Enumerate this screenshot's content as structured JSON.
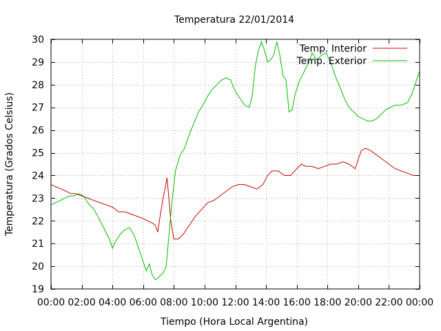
{
  "chart_data": {
    "type": "line",
    "title": "Temperatura 22/01/2014",
    "xlabel": "Tiempo (Hora Local Argentina)",
    "ylabel": "Temperatura (Grados Celsius)",
    "xlim": [
      0,
      24
    ],
    "ylim": [
      19,
      30
    ],
    "x_ticks": [
      0,
      2,
      4,
      6,
      8,
      10,
      12,
      14,
      16,
      18,
      20,
      22,
      24
    ],
    "x_tick_labels": [
      "00:00",
      "02:00",
      "04:00",
      "06:00",
      "08:00",
      "10:00",
      "12:00",
      "14:00",
      "16:00",
      "18:00",
      "20:00",
      "22:00",
      "00:00"
    ],
    "y_ticks": [
      19,
      20,
      21,
      22,
      23,
      24,
      25,
      26,
      27,
      28,
      29,
      30
    ],
    "y_tick_labels": [
      "19",
      "20",
      "21",
      "22",
      "23",
      "24",
      "25",
      "26",
      "27",
      "28",
      "29",
      "30"
    ],
    "grid": true,
    "legend_position": "top-right",
    "series": [
      {
        "name": "Temp. Interior",
        "color": "#cc0000",
        "points": [
          [
            0,
            23.6
          ],
          [
            0.3,
            23.5
          ],
          [
            0.7,
            23.4
          ],
          [
            1.0,
            23.3
          ],
          [
            1.3,
            23.2
          ],
          [
            1.6,
            23.2
          ],
          [
            2.0,
            23.1
          ],
          [
            2.4,
            23.0
          ],
          [
            2.8,
            22.9
          ],
          [
            3.2,
            22.8
          ],
          [
            3.6,
            22.7
          ],
          [
            4.0,
            22.6
          ],
          [
            4.4,
            22.4
          ],
          [
            4.8,
            22.4
          ],
          [
            5.2,
            22.3
          ],
          [
            5.6,
            22.2
          ],
          [
            6.0,
            22.1
          ],
          [
            6.3,
            22.0
          ],
          [
            6.6,
            21.9
          ],
          [
            6.8,
            21.8
          ],
          [
            6.95,
            21.5
          ],
          [
            7.1,
            22.2
          ],
          [
            7.3,
            23.0
          ],
          [
            7.45,
            23.5
          ],
          [
            7.55,
            23.9
          ],
          [
            7.65,
            23.2
          ],
          [
            7.8,
            22.0
          ],
          [
            8.0,
            21.2
          ],
          [
            8.3,
            21.2
          ],
          [
            8.6,
            21.4
          ],
          [
            9.0,
            21.8
          ],
          [
            9.4,
            22.2
          ],
          [
            9.8,
            22.5
          ],
          [
            10.2,
            22.8
          ],
          [
            10.6,
            22.9
          ],
          [
            11.0,
            23.1
          ],
          [
            11.4,
            23.3
          ],
          [
            11.8,
            23.5
          ],
          [
            12.2,
            23.6
          ],
          [
            12.6,
            23.6
          ],
          [
            13.0,
            23.5
          ],
          [
            13.4,
            23.4
          ],
          [
            13.8,
            23.6
          ],
          [
            14.1,
            24.0
          ],
          [
            14.4,
            24.2
          ],
          [
            14.8,
            24.2
          ],
          [
            15.2,
            24.0
          ],
          [
            15.6,
            24.0
          ],
          [
            16.0,
            24.3
          ],
          [
            16.3,
            24.5
          ],
          [
            16.6,
            24.4
          ],
          [
            17.0,
            24.4
          ],
          [
            17.4,
            24.3
          ],
          [
            17.8,
            24.4
          ],
          [
            18.2,
            24.5
          ],
          [
            18.6,
            24.5
          ],
          [
            19.0,
            24.6
          ],
          [
            19.4,
            24.5
          ],
          [
            19.8,
            24.3
          ],
          [
            20.0,
            24.7
          ],
          [
            20.2,
            25.1
          ],
          [
            20.5,
            25.2
          ],
          [
            20.8,
            25.1
          ],
          [
            21.2,
            24.9
          ],
          [
            21.6,
            24.7
          ],
          [
            22.0,
            24.5
          ],
          [
            22.4,
            24.3
          ],
          [
            22.8,
            24.2
          ],
          [
            23.2,
            24.1
          ],
          [
            23.6,
            24.0
          ],
          [
            24.0,
            24.0
          ]
        ]
      },
      {
        "name": "Temp. Exterior",
        "color": "#00bb00",
        "points": [
          [
            0,
            22.7
          ],
          [
            0.3,
            22.8
          ],
          [
            0.6,
            22.9
          ],
          [
            0.9,
            23.0
          ],
          [
            1.2,
            23.1
          ],
          [
            1.5,
            23.1
          ],
          [
            1.8,
            23.2
          ],
          [
            2.1,
            23.1
          ],
          [
            2.4,
            22.8
          ],
          [
            2.8,
            22.5
          ],
          [
            3.2,
            22.0
          ],
          [
            3.5,
            21.6
          ],
          [
            3.8,
            21.2
          ],
          [
            4.0,
            20.8
          ],
          [
            4.2,
            21.1
          ],
          [
            4.5,
            21.4
          ],
          [
            4.8,
            21.6
          ],
          [
            5.1,
            21.7
          ],
          [
            5.4,
            21.4
          ],
          [
            5.7,
            20.8
          ],
          [
            6.0,
            20.2
          ],
          [
            6.2,
            19.8
          ],
          [
            6.4,
            20.1
          ],
          [
            6.6,
            19.6
          ],
          [
            6.8,
            19.4
          ],
          [
            7.0,
            19.5
          ],
          [
            7.3,
            19.7
          ],
          [
            7.5,
            20.0
          ],
          [
            7.7,
            21.5
          ],
          [
            7.9,
            23.0
          ],
          [
            8.1,
            24.2
          ],
          [
            8.4,
            24.9
          ],
          [
            8.7,
            25.2
          ],
          [
            9.0,
            25.8
          ],
          [
            9.3,
            26.3
          ],
          [
            9.6,
            26.8
          ],
          [
            9.9,
            27.1
          ],
          [
            10.2,
            27.5
          ],
          [
            10.5,
            27.8
          ],
          [
            10.8,
            28.0
          ],
          [
            11.1,
            28.2
          ],
          [
            11.4,
            28.3
          ],
          [
            11.7,
            28.2
          ],
          [
            12.0,
            27.7
          ],
          [
            12.3,
            27.4
          ],
          [
            12.6,
            27.1
          ],
          [
            12.9,
            27.0
          ],
          [
            13.1,
            27.5
          ],
          [
            13.3,
            28.8
          ],
          [
            13.5,
            29.5
          ],
          [
            13.7,
            29.9
          ],
          [
            13.9,
            29.5
          ],
          [
            14.1,
            29.0
          ],
          [
            14.3,
            29.1
          ],
          [
            14.5,
            29.3
          ],
          [
            14.7,
            29.9
          ],
          [
            14.9,
            29.3
          ],
          [
            15.1,
            28.4
          ],
          [
            15.3,
            28.2
          ],
          [
            15.5,
            26.8
          ],
          [
            15.7,
            26.9
          ],
          [
            15.9,
            27.6
          ],
          [
            16.2,
            28.2
          ],
          [
            16.5,
            28.6
          ],
          [
            16.8,
            29.0
          ],
          [
            17.0,
            29.4
          ],
          [
            17.3,
            29.1
          ],
          [
            17.6,
            29.3
          ],
          [
            17.9,
            29.4
          ],
          [
            18.2,
            29.0
          ],
          [
            18.5,
            28.4
          ],
          [
            18.8,
            27.9
          ],
          [
            19.1,
            27.4
          ],
          [
            19.4,
            27.0
          ],
          [
            19.7,
            26.8
          ],
          [
            20.0,
            26.6
          ],
          [
            20.3,
            26.5
          ],
          [
            20.6,
            26.4
          ],
          [
            20.9,
            26.4
          ],
          [
            21.2,
            26.5
          ],
          [
            21.5,
            26.7
          ],
          [
            21.8,
            26.9
          ],
          [
            22.1,
            27.0
          ],
          [
            22.4,
            27.1
          ],
          [
            22.8,
            27.1
          ],
          [
            23.2,
            27.2
          ],
          [
            23.5,
            27.6
          ],
          [
            23.8,
            28.2
          ],
          [
            24.0,
            28.6
          ]
        ]
      }
    ]
  }
}
